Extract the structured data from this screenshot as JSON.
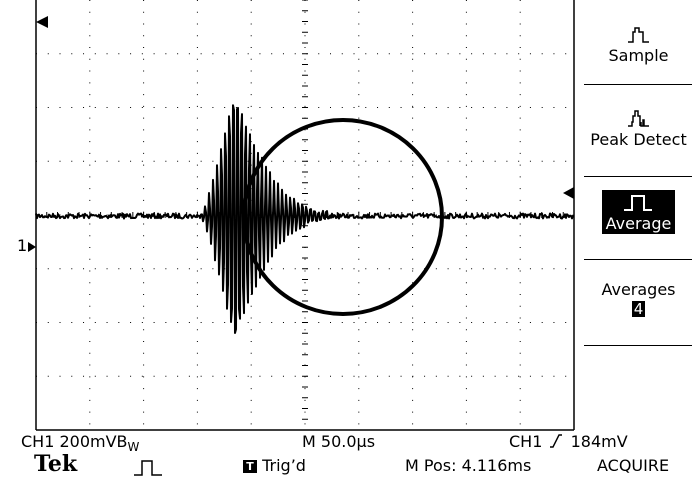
{
  "menu": {
    "sample_label": "Sample",
    "peak_detect_label": "Peak Detect",
    "average_label": "Average",
    "averages_label": "Averages",
    "averages_value": "4"
  },
  "status": {
    "ch1_scale": "CH1  200mVB",
    "bw_mark": "W",
    "timebase": "M 50.0µs",
    "trigger_source": "CH1",
    "trigger_level": "184mV",
    "brand": "Tek",
    "trig_badge": "T",
    "trig_state": "Trig’d",
    "m_pos": "M Pos: 4.116ms",
    "mode": "ACQUIRE"
  },
  "markers": {
    "ch1_ref": "1"
  },
  "colors": {
    "trace": "#000000",
    "grid": "#000000",
    "background": "#ffffff"
  },
  "icons": [
    "trigger-arrow-icon",
    "trigger-level-arrow-icon",
    "sample-mode-icon",
    "peak-detect-mode-icon",
    "average-mode-icon",
    "run-stop-icon",
    "rising-edge-icon"
  ]
}
